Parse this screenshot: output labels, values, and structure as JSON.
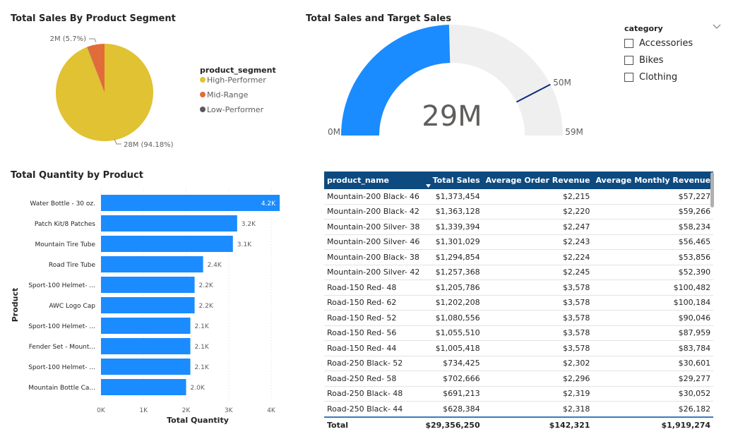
{
  "pie": {
    "title": "Total Sales By Product Segment",
    "legend_title": "product_segment",
    "legend": [
      {
        "label": "High-Performer",
        "color": "#e0c233"
      },
      {
        "label": "Mid-Range",
        "color": "#e26b3a"
      },
      {
        "label": "Low-Performer",
        "color": "#5a5a5a"
      }
    ],
    "label_small": "2M (5.7%)",
    "label_large": "28M (94.18%)"
  },
  "gauge": {
    "title": "Total Sales and Target Sales",
    "value_label": "29M",
    "min_label": "0M",
    "max_label": "59M",
    "target_label": "50M",
    "fill_color": "#1a8cff",
    "track_color": "#f0efef"
  },
  "slicer": {
    "title": "category",
    "items": [
      "Accessories",
      "Bikes",
      "Clothing"
    ]
  },
  "bar": {
    "title": "Total Quantity by Product",
    "ylabel": "Product",
    "xlabel": "Total Quantity",
    "color": "#1a8cff"
  },
  "table": {
    "headers": [
      "product_name",
      "Total Sales",
      "Average Order Revenue",
      "Average Monthly Revenue"
    ],
    "rows": [
      [
        "Mountain-200 Black- 46",
        "$1,373,454",
        "$2,215",
        "$57,227"
      ],
      [
        "Mountain-200 Black- 42",
        "$1,363,128",
        "$2,220",
        "$59,266"
      ],
      [
        "Mountain-200 Silver- 38",
        "$1,339,394",
        "$2,247",
        "$58,234"
      ],
      [
        "Mountain-200 Silver- 46",
        "$1,301,029",
        "$2,243",
        "$56,465"
      ],
      [
        "Mountain-200 Black- 38",
        "$1,294,854",
        "$2,224",
        "$53,856"
      ],
      [
        "Mountain-200 Silver- 42",
        "$1,257,368",
        "$2,245",
        "$52,390"
      ],
      [
        "Road-150 Red- 48",
        "$1,205,786",
        "$3,578",
        "$100,482"
      ],
      [
        "Road-150 Red- 62",
        "$1,202,208",
        "$3,578",
        "$100,184"
      ],
      [
        "Road-150 Red- 52",
        "$1,080,556",
        "$3,578",
        "$90,046"
      ],
      [
        "Road-150 Red- 56",
        "$1,055,510",
        "$3,578",
        "$87,959"
      ],
      [
        "Road-150 Red- 44",
        "$1,005,418",
        "$3,578",
        "$83,784"
      ],
      [
        "Road-250 Black- 52",
        "$734,425",
        "$2,302",
        "$30,601"
      ],
      [
        "Road-250 Red- 58",
        "$702,666",
        "$2,296",
        "$29,277"
      ],
      [
        "Road-250 Black- 48",
        "$691,213",
        "$2,319",
        "$30,052"
      ],
      [
        "Road-250 Black- 44",
        "$628,384",
        "$2,318",
        "$26,182"
      ]
    ],
    "total": [
      "Total",
      "$29,356,250",
      "$142,321",
      "$1,919,274"
    ]
  },
  "chart_data": [
    {
      "type": "pie",
      "title": "Total Sales By Product Segment",
      "legend_title": "product_segment",
      "categories": [
        "High-Performer",
        "Mid-Range",
        "Low-Performer"
      ],
      "values": [
        94.18,
        5.7,
        0.12
      ],
      "labels": [
        "28M (94.18%)",
        "2M (5.7%)",
        ""
      ],
      "colors": [
        "#e0c233",
        "#e26b3a",
        "#5a5a5a"
      ],
      "legend_position": "right"
    },
    {
      "type": "gauge",
      "title": "Total Sales and Target Sales",
      "value": 29,
      "min": 0,
      "max": 59,
      "target": 50,
      "unit": "M"
    },
    {
      "type": "bar",
      "orientation": "horizontal",
      "title": "Total Quantity by Product",
      "xlabel": "Total Quantity",
      "ylabel": "Product",
      "categories": [
        "Water Bottle - 30 oz.",
        "Patch Kit/8 Patches",
        "Mountain Tire Tube",
        "Road Tire Tube",
        "Sport-100 Helmet- ...",
        "AWC Logo Cap",
        "Sport-100 Helmet- ...",
        "Fender Set - Mount...",
        "Sport-100 Helmet- ...",
        "Mountain Bottle Ca..."
      ],
      "values": [
        4200,
        3200,
        3100,
        2400,
        2200,
        2200,
        2100,
        2100,
        2100,
        2000
      ],
      "data_labels": [
        "4.2K",
        "3.2K",
        "3.1K",
        "2.4K",
        "2.2K",
        "2.2K",
        "2.1K",
        "2.1K",
        "2.1K",
        "2.0K"
      ],
      "xticks": [
        "0K",
        "1K",
        "2K",
        "3K",
        "4K"
      ],
      "xlim": [
        0,
        4200
      ]
    }
  ]
}
